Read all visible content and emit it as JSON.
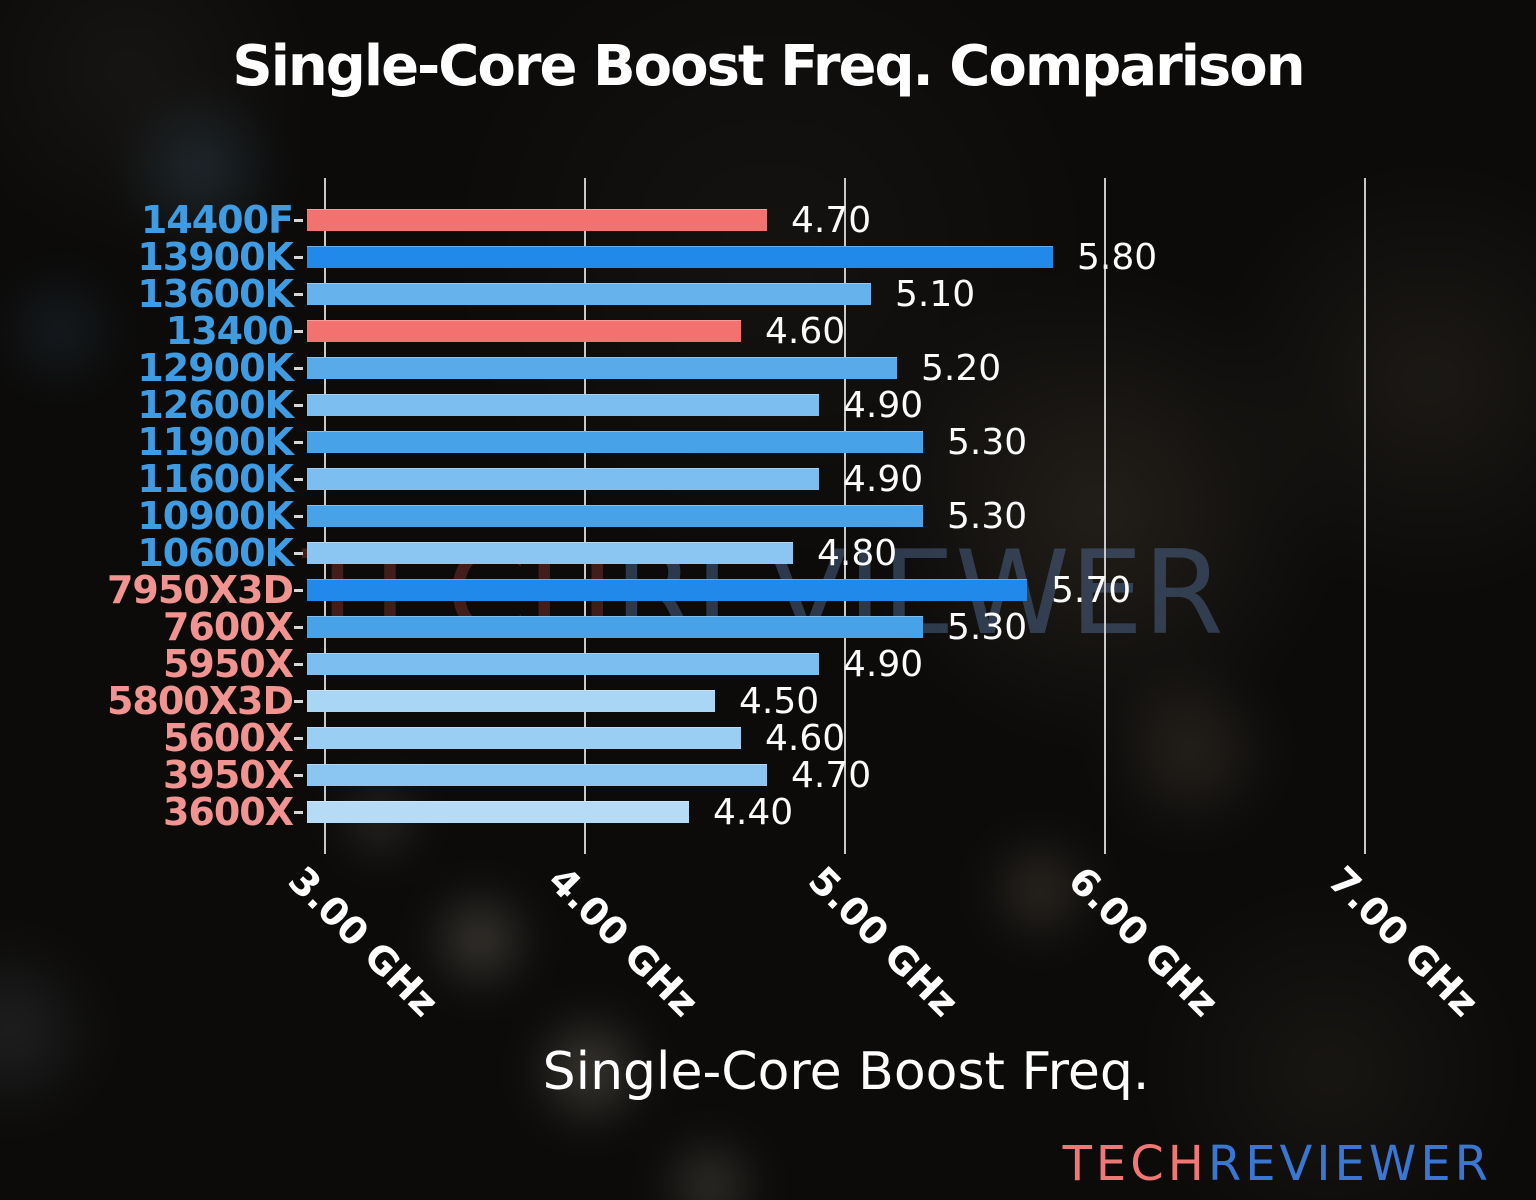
{
  "title": "Single-Core Boost Freq. Comparison",
  "watermark": {
    "tech": "TECH",
    "reviewer": "REVIEWER"
  },
  "logo": {
    "tech": "TECH",
    "reviewer": "REVIEWER"
  },
  "colors": {
    "background": "#0c0b0a",
    "title": "#ffffff",
    "value_label": "#fbfbfb",
    "gridline": "#c9c9c9",
    "x_tick_label": "#ffffff",
    "axis_title": "#ffffff",
    "intel_label": "#3f9ce3",
    "amd_label": "#f09391",
    "highlight_bar": "#f37270",
    "logo_tech": "#ef7775",
    "logo_reviewer": "#3a76d2",
    "watermark_tech": "#8a3a36",
    "watermark_reviewer": "#5a7aa8"
  },
  "chart_data": {
    "type": "bar",
    "orientation": "horizontal",
    "title": "Single-Core Boost Freq. Comparison",
    "xlabel": "Single-Core Boost Freq.",
    "ylabel": "",
    "xlim": [
      2.93,
      7.66
    ],
    "grid": "vertical gridlines at each 1.00 GHz tick",
    "legend": "none",
    "x_ticks": [
      {
        "value": 3,
        "label": "3.00 GHz"
      },
      {
        "value": 4,
        "label": "4.00 GHz"
      },
      {
        "value": 5,
        "label": "5.00 GHz"
      },
      {
        "value": 6,
        "label": "6.00 GHz"
      },
      {
        "value": 7,
        "label": "7.00 GHz"
      }
    ],
    "categories": [
      "14400F",
      "13900K",
      "13600K",
      "13400",
      "12900K",
      "12600K",
      "11900K",
      "11600K",
      "10900K",
      "10600K",
      "7950X3D",
      "7600X",
      "5950X",
      "5800X3D",
      "5600X",
      "3950X",
      "3600X"
    ],
    "values": [
      4.7,
      5.8,
      5.1,
      4.6,
      5.2,
      4.9,
      5.3,
      4.9,
      5.3,
      4.8,
      5.7,
      5.3,
      4.9,
      4.5,
      4.6,
      4.7,
      4.4
    ],
    "value_labels": [
      "4.70",
      "5.80",
      "5.10",
      "4.60",
      "5.20",
      "4.90",
      "5.30",
      "4.90",
      "5.30",
      "4.80",
      "5.70",
      "5.30",
      "4.90",
      "4.50",
      "4.60",
      "4.70",
      "4.40"
    ],
    "bar_colors": [
      "#f37270",
      "#2189ea",
      "#66b2ec",
      "#f37270",
      "#58aae9",
      "#7bbeef",
      "#48a2e8",
      "#7bbeef",
      "#48a2e8",
      "#8ac6f1",
      "#2189ea",
      "#48a2e8",
      "#7bbeef",
      "#a9d6f5",
      "#9acff3",
      "#8ac6f1",
      "#b5dbf7"
    ],
    "category_colors": [
      "#3f9ce3",
      "#3f9ce3",
      "#3f9ce3",
      "#3f9ce3",
      "#3f9ce3",
      "#3f9ce3",
      "#3f9ce3",
      "#3f9ce3",
      "#3f9ce3",
      "#3f9ce3",
      "#f09391",
      "#f09391",
      "#f09391",
      "#f09391",
      "#f09391",
      "#f09391",
      "#f09391"
    ],
    "highlighted_bars": [
      "14400F",
      "13400"
    ]
  }
}
